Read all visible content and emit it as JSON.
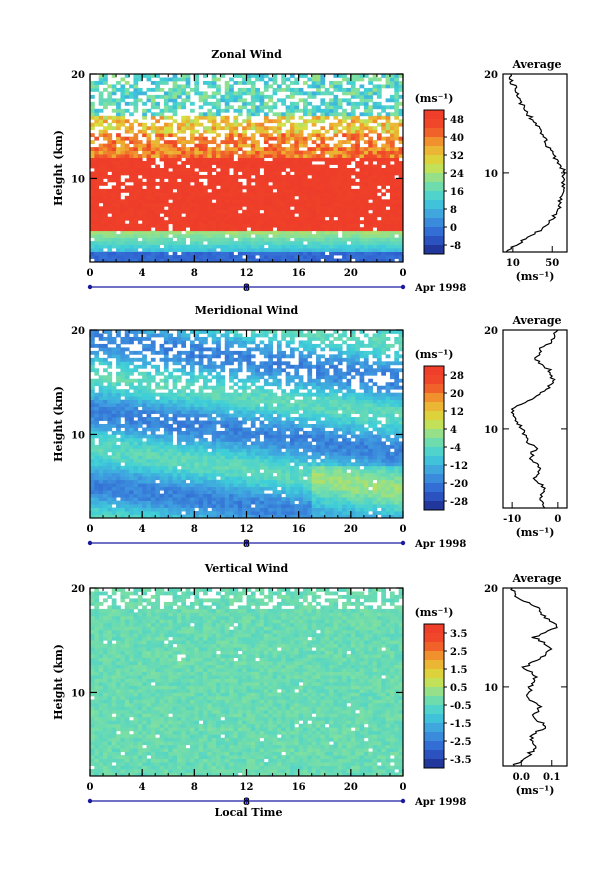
{
  "xlabel_bottom": "Local Time",
  "date_label": "Apr 1998",
  "date_marker": "8",
  "ylabel": "Height (km)",
  "unit": "(ms⁻¹)",
  "chart_data": [
    {
      "type": "heatmap",
      "title": "Zonal Wind",
      "x_ticks": [
        "0",
        "4",
        "8",
        "12",
        "16",
        "20",
        "0"
      ],
      "y_ticks": [
        "20",
        "10"
      ],
      "xlim": [
        0,
        24
      ],
      "ylim": [
        2,
        20
      ],
      "colorbar_ticks": [
        "48",
        "40",
        "32",
        "24",
        "16",
        "8",
        "0",
        "-8"
      ],
      "colorbar_range": [
        -12,
        52
      ],
      "profile": {
        "title": "Average",
        "x_ticks": [
          "10",
          "50"
        ],
        "xlim": [
          0,
          65
        ],
        "heights": [
          2,
          3,
          4,
          5,
          6,
          7,
          8,
          9,
          10,
          11,
          12,
          13,
          14,
          15,
          16,
          17,
          18,
          19,
          20
        ],
        "values": [
          3,
          18,
          35,
          48,
          55,
          58,
          60,
          62,
          63,
          57,
          50,
          44,
          40,
          34,
          24,
          19,
          14,
          10,
          8
        ]
      }
    },
    {
      "type": "heatmap",
      "title": "Meridional Wind",
      "x_ticks": [
        "0",
        "4",
        "8",
        "12",
        "16",
        "20",
        "0"
      ],
      "y_ticks": [
        "20",
        "10"
      ],
      "xlim": [
        0,
        24
      ],
      "ylim": [
        2,
        20
      ],
      "colorbar_ticks": [
        "28",
        "20",
        "12",
        "4",
        "-4",
        "-12",
        "-20",
        "-28"
      ],
      "colorbar_range": [
        -32,
        32
      ],
      "profile": {
        "title": "Average",
        "x_ticks": [
          "-10",
          "0"
        ],
        "xlim": [
          -12,
          2
        ],
        "heights": [
          2,
          3,
          4,
          5,
          6,
          7,
          8,
          9,
          10,
          11,
          12,
          13,
          14,
          15,
          16,
          17,
          18,
          19,
          20
        ],
        "values": [
          -3,
          -4,
          -3,
          -5,
          -4,
          -6,
          -5,
          -7,
          -8,
          -9,
          -10,
          -6,
          -2,
          -1,
          -2,
          -5,
          -4,
          -1,
          0
        ]
      }
    },
    {
      "type": "heatmap",
      "title": "Vertical Wind",
      "x_ticks": [
        "0",
        "4",
        "8",
        "12",
        "16",
        "20",
        "0"
      ],
      "y_ticks": [
        "20",
        "10"
      ],
      "xlim": [
        0,
        24
      ],
      "ylim": [
        2,
        20
      ],
      "colorbar_ticks": [
        "3.5",
        "2.5",
        "1.5",
        "0.5",
        "-0.5",
        "-1.5",
        "-2.5",
        "-3.5"
      ],
      "colorbar_range": [
        -4,
        4
      ],
      "profile": {
        "title": "Average",
        "x_ticks": [
          "0.0",
          "0.1"
        ],
        "xlim": [
          -0.06,
          0.15
        ],
        "heights": [
          2,
          3,
          4,
          5,
          6,
          7,
          8,
          9,
          10,
          11,
          12,
          13,
          14,
          15,
          16,
          17,
          18,
          19,
          20
        ],
        "values": [
          -0.03,
          0.02,
          0.05,
          0.03,
          0.08,
          0.04,
          0.06,
          0.02,
          0.03,
          0.05,
          0.01,
          0.07,
          0.1,
          0.04,
          0.12,
          0.08,
          0.05,
          -0.01,
          -0.03
        ]
      }
    }
  ]
}
